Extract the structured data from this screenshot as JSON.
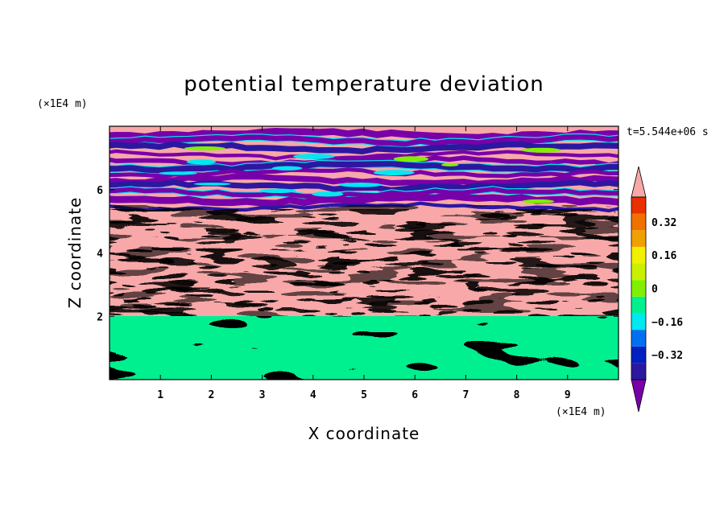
{
  "chart_data": {
    "type": "heatmap",
    "title": "potential temperature deviation",
    "xlabel": "X coordinate",
    "ylabel": "Z coordinate",
    "x_unit": "(×1E4 m)",
    "y_unit": "(×1E4 m)",
    "time_label": "t=5.544e+06 s",
    "xlim": [
      0,
      10
    ],
    "ylim": [
      0,
      8
    ],
    "x_ticks": [
      1,
      2,
      3,
      4,
      5,
      6,
      7,
      8,
      9
    ],
    "y_ticks": [
      2,
      4,
      6
    ],
    "colorbar": {
      "levels": [
        -0.48,
        -0.4,
        -0.32,
        -0.24,
        -0.16,
        -0.08,
        0,
        0.08,
        0.16,
        0.24,
        0.32,
        0.4,
        0.48
      ],
      "tick_labels": [
        "0.32",
        "0.16",
        "0",
        "−0.16",
        "−0.32"
      ],
      "colors": [
        "#7800a8",
        "#2c18a0",
        "#0020c0",
        "#0070f0",
        "#00e8f0",
        "#00f090",
        "#80f000",
        "#c8f000",
        "#f0f000",
        "#f0a000",
        "#f07000",
        "#e83000",
        "#f8a8a8"
      ]
    },
    "bands": [
      {
        "z_range": [
          0,
          1.95
        ],
        "description": "smooth green / light green field"
      },
      {
        "z_range": [
          1.95,
          5.2
        ],
        "description": "mixed high-variability layer"
      },
      {
        "z_range": [
          5.2,
          8
        ],
        "description": "alternating pink and purple strata"
      }
    ]
  }
}
